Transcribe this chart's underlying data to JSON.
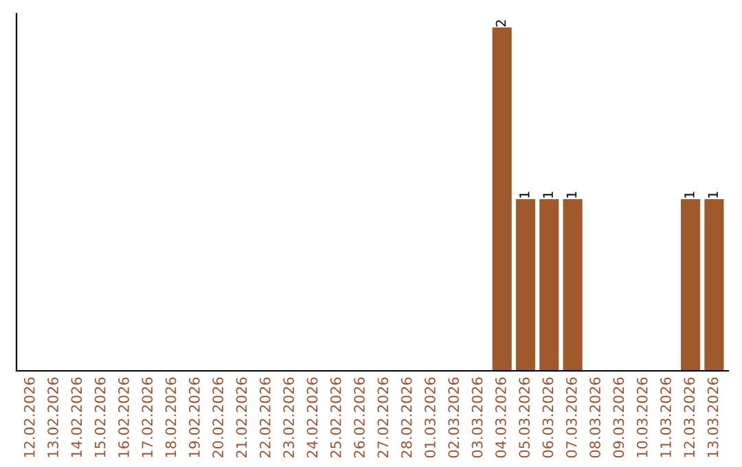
{
  "chart_data": {
    "type": "bar",
    "categories": [
      "12.02.2026",
      "13.02.2026",
      "14.02.2026",
      "15.02.2026",
      "16.02.2026",
      "17.02.2026",
      "18.02.2026",
      "19.02.2026",
      "20.02.2026",
      "21.02.2026",
      "22.02.2026",
      "23.02.2026",
      "24.02.2026",
      "25.02.2026",
      "26.02.2026",
      "27.02.2026",
      "28.02.2026",
      "01.03.2026",
      "02.03.2026",
      "03.03.2026",
      "04.03.2026",
      "05.03.2026",
      "06.03.2026",
      "07.03.2026",
      "08.03.2026",
      "09.03.2026",
      "10.03.2026",
      "11.03.2026",
      "12.03.2026",
      "13.03.2026"
    ],
    "values": [
      null,
      null,
      null,
      null,
      null,
      null,
      null,
      null,
      null,
      null,
      null,
      null,
      null,
      null,
      null,
      null,
      null,
      null,
      null,
      null,
      2,
      1,
      1,
      1,
      null,
      null,
      null,
      null,
      1,
      1
    ],
    "data_labels": true,
    "color": "#a0592a",
    "tick_labels": "x",
    "grid": false,
    "legend": false
  }
}
